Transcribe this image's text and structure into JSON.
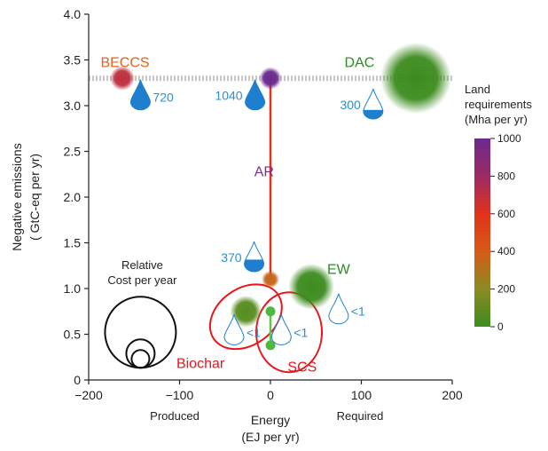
{
  "chart_data": {
    "type": "scatter",
    "xlabel": "Energy",
    "xunit": "(EJ per yr)",
    "ylabel": "Negative emissions",
    "yunit": "( GtC-eq per yr)",
    "xlim": [
      -200,
      200
    ],
    "ylim": [
      0,
      4
    ],
    "x_ticks": [
      -200,
      -100,
      0,
      100,
      200
    ],
    "x_tick_labels": [
      "−200",
      "−100",
      "0",
      "100",
      "200"
    ],
    "y_ticks": [
      0,
      0.5,
      1.0,
      1.5,
      2.0,
      2.5,
      3.0,
      3.5,
      4.0
    ],
    "y_tick_labels": [
      "0",
      "0.5",
      "1.0",
      "1.5",
      "2.0",
      "2.5",
      "3.0",
      "3.5",
      "4.0"
    ],
    "x_side_labels": {
      "left": "Produced",
      "right": "Required"
    },
    "grid": false,
    "reference_line_y": 3.3,
    "technologies": [
      {
        "name": "BECCS",
        "x": -163,
        "y": 3.3,
        "land": 700,
        "size": 0.12,
        "water": "720",
        "water_fill": 1.0,
        "drop_x": -143,
        "drop_y": 3.1,
        "color": "#e2621b"
      },
      {
        "name": "DAC",
        "x": 160,
        "y": 3.3,
        "land": 0,
        "size": 1.0,
        "water": "300",
        "water_fill": 0.3,
        "drop_x": 113,
        "drop_y": 3.0,
        "color": "#2b8a24"
      },
      {
        "name": "AR",
        "x": 0,
        "y": 3.3,
        "land": 1000,
        "size": 0.1,
        "water": "1040",
        "water_fill": 1.0,
        "drop_x": -17,
        "drop_y": 3.1,
        "color": "#7b2d91"
      },
      {
        "name": "EW",
        "x": 45,
        "y": 1.02,
        "land": 0,
        "size": 0.42,
        "water": "<1",
        "water_fill": 0,
        "drop_x": 75,
        "drop_y": 0.76,
        "color": "#2b8a24"
      },
      {
        "name": "Biochar",
        "x": -27,
        "y": 0.75,
        "land": 70,
        "size": 0.2,
        "water": "<1",
        "water_fill": 0,
        "drop_x": -40,
        "drop_y": 0.53,
        "color": "#e8151b"
      },
      {
        "name": "SCS",
        "x": 0,
        "y": 0.57,
        "land": 0,
        "size": 0.05,
        "water": "<1",
        "water_fill": 0,
        "drop_x": 12,
        "drop_y": 0.53,
        "color": "#e8151b"
      }
    ],
    "ar_low_point": {
      "x": 0,
      "y": 1.1,
      "land": 350,
      "water": "370",
      "water_fill": 0.4,
      "drop_x": -18,
      "drop_y": 1.33
    },
    "scs_points": [
      {
        "x": 0,
        "y": 0.75
      },
      {
        "x": 0,
        "y": 0.38
      }
    ],
    "cost_legend": {
      "title_line1": "Relative",
      "title_line2": "Cost per year",
      "x": -143,
      "sizes": [
        1.0,
        0.4,
        0.25
      ]
    },
    "colorbar": {
      "title_line1": "Land",
      "title_line2": "requirements",
      "title_line3": "(Mha per yr)",
      "min": 0,
      "max": 1000,
      "ticks": [
        0,
        200,
        400,
        600,
        800,
        1000
      ],
      "tick_labels": [
        "0",
        "200",
        "400",
        "600",
        "800",
        "1000"
      ],
      "stops": [
        "#3d8c1f",
        "#8a8b22",
        "#d85a16",
        "#e0331a",
        "#9c2a64",
        "#6a2a8f"
      ]
    },
    "colors": {
      "water": "#1f7fcf",
      "water_text": "#2a8fd0",
      "axis": "#222222",
      "ref_line": "#c8c8c8",
      "ellipse": "#e8151b"
    }
  }
}
